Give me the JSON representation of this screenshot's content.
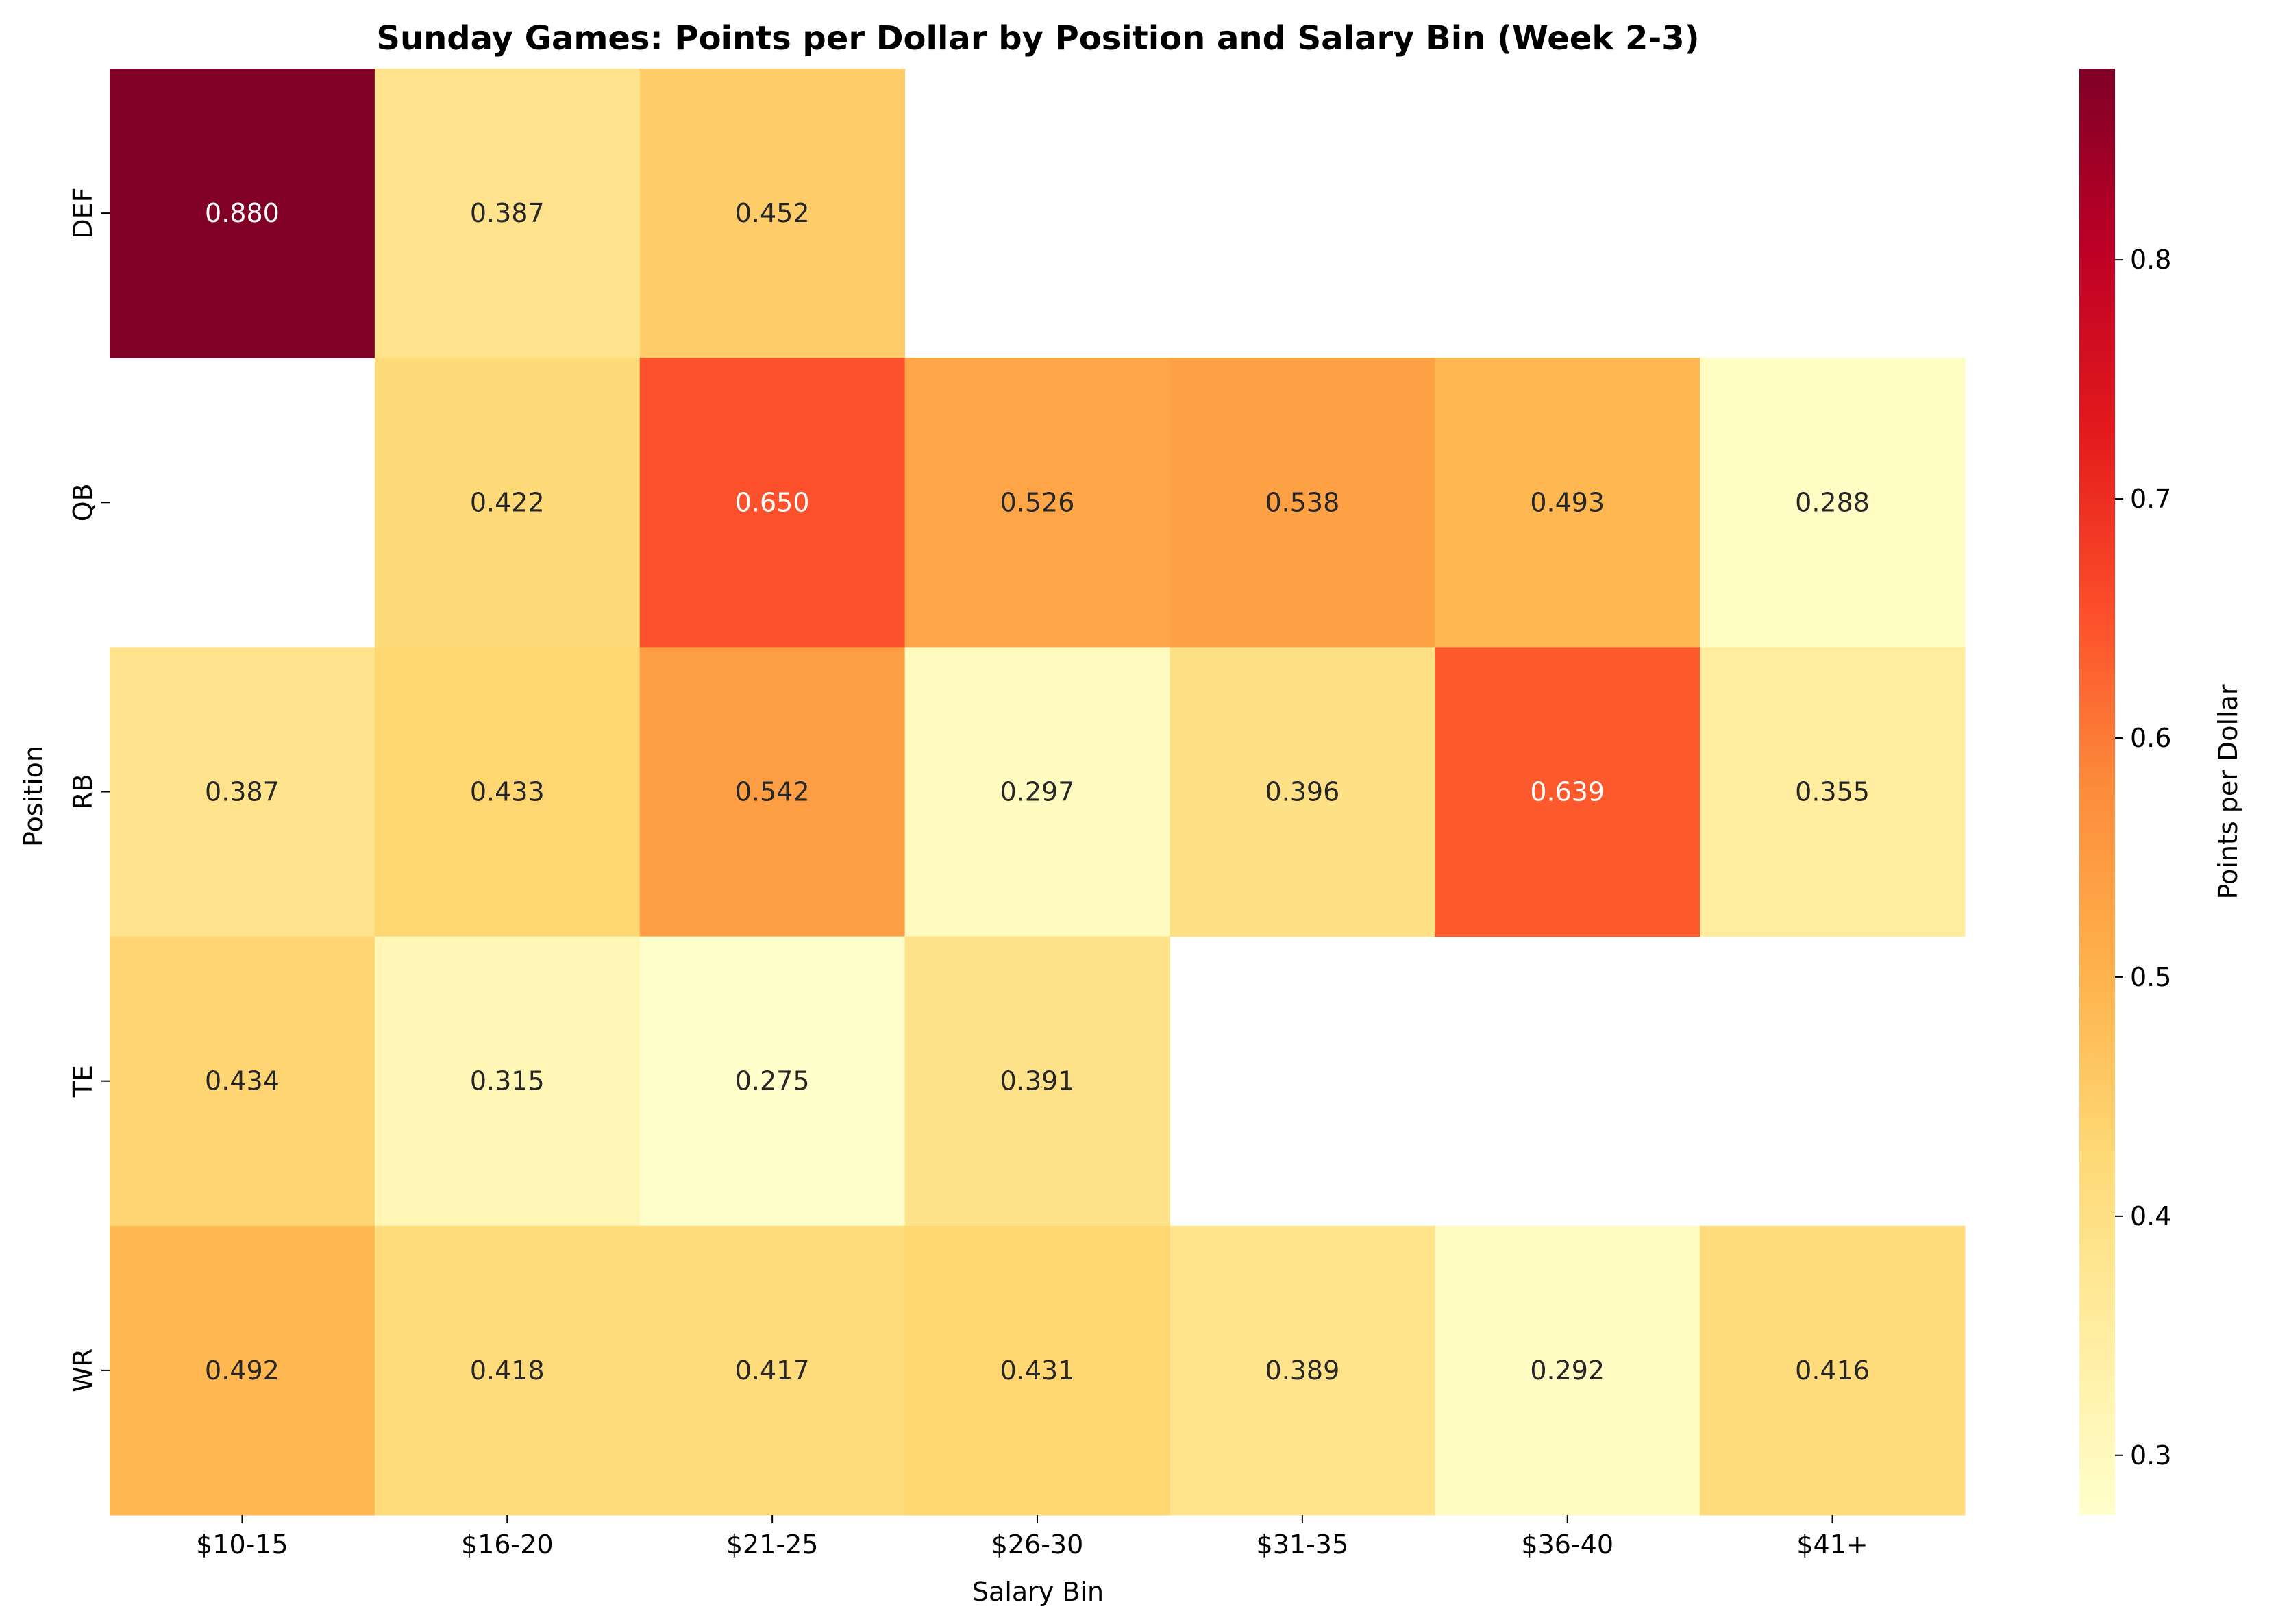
{
  "chart_data": {
    "type": "heatmap",
    "title": "Sunday Games: Points per Dollar by Position and Salary Bin (Week 2-3)",
    "xlabel": "Salary Bin",
    "ylabel": "Position",
    "x_categories": [
      "$10-15",
      "$16-20",
      "$21-25",
      "$26-30",
      "$31-35",
      "$36-40",
      "$41+"
    ],
    "y_categories": [
      "DEF",
      "QB",
      "RB",
      "TE",
      "WR"
    ],
    "values": [
      [
        0.88,
        0.387,
        0.452,
        null,
        null,
        null,
        null
      ],
      [
        null,
        0.422,
        0.65,
        0.526,
        0.538,
        0.493,
        0.288
      ],
      [
        0.387,
        0.433,
        0.542,
        0.297,
        0.396,
        0.639,
        0.355
      ],
      [
        0.434,
        0.315,
        0.275,
        0.391,
        null,
        null,
        null
      ],
      [
        0.492,
        0.418,
        0.417,
        0.431,
        0.389,
        0.292,
        0.416
      ]
    ],
    "value_format": "0.000",
    "colormap": "YlOrRd",
    "color_range": [
      0.275,
      0.88
    ],
    "colorbar": {
      "label": "Points per Dollar",
      "ticks": [
        "0.3",
        "0.4",
        "0.5",
        "0.6",
        "0.7",
        "0.8"
      ]
    }
  }
}
